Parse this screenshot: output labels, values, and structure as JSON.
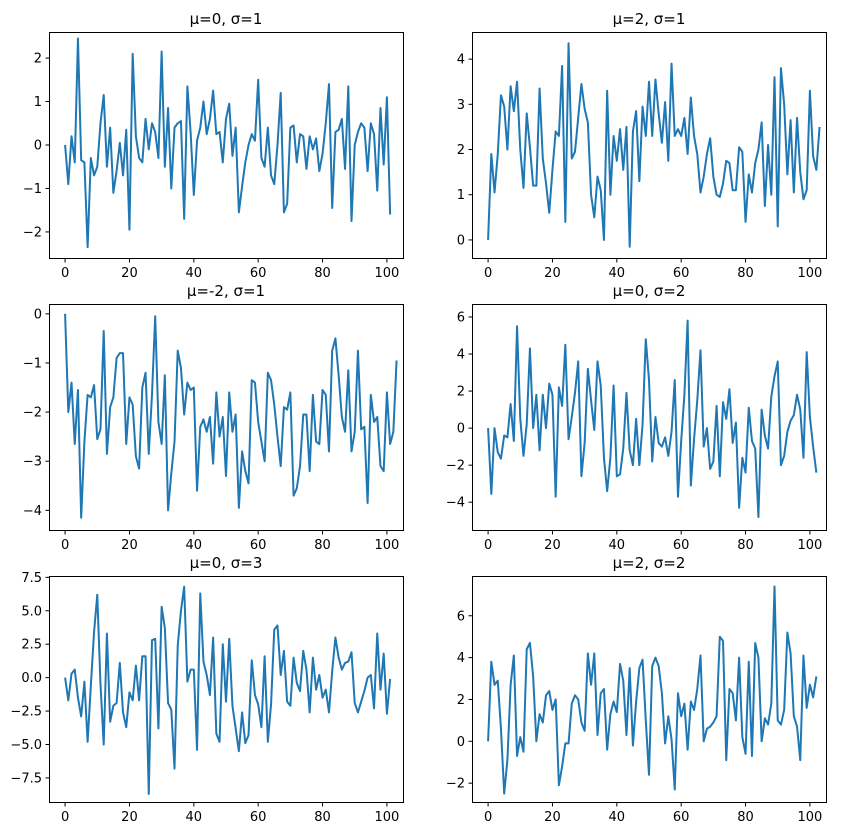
{
  "colors": {
    "line": "#1f77b4",
    "axis": "#000000",
    "background": "#ffffff"
  },
  "chart_data": [
    {
      "type": "line",
      "title": "μ=0, σ=1",
      "xlim": [
        -5,
        105
      ],
      "ylim": [
        -2.6,
        2.6
      ],
      "xticks": [
        0,
        20,
        40,
        60,
        80,
        100
      ],
      "xtick_labels": [
        "0",
        "20",
        "40",
        "60",
        "80",
        "100"
      ],
      "yticks": [
        -2,
        -1,
        0,
        1,
        2
      ],
      "ytick_labels": [
        "−2",
        "−1",
        "0",
        "1",
        "2"
      ],
      "values": [
        0,
        -0.9,
        0.2,
        -0.4,
        2.45,
        -0.35,
        -0.4,
        -2.35,
        -0.3,
        -0.7,
        -0.5,
        0.5,
        1.15,
        -0.5,
        0.4,
        -1.1,
        -0.6,
        0.05,
        -0.7,
        0.35,
        -1.95,
        2.1,
        0.2,
        -0.3,
        -0.4,
        0.6,
        -0.1,
        0.5,
        0.3,
        -0.3,
        2.15,
        -0.5,
        0.85,
        -1.0,
        0.4,
        0.5,
        0.55,
        -1.7,
        1.35,
        0.3,
        -1.15,
        0.1,
        0.4,
        1.0,
        0.25,
        0.6,
        1.25,
        0.25,
        0.3,
        -0.4,
        0.6,
        0.95,
        -0.25,
        0.4,
        -1.55,
        -0.95,
        -0.4,
        0.0,
        0.25,
        0.1,
        1.5,
        -0.3,
        -0.5,
        0.4,
        -0.7,
        -0.9,
        0.0,
        1.2,
        -1.55,
        -1.35,
        0.4,
        0.45,
        -0.4,
        0.25,
        0.2,
        -0.55,
        0.2,
        -0.1,
        0.15,
        -0.6,
        -0.2,
        0.5,
        1.4,
        -1.45,
        0.3,
        0.35,
        0.6,
        -0.55,
        1.35,
        -1.75,
        0.0,
        0.3,
        0.5,
        0.4,
        -0.6,
        0.5,
        0.25,
        -1.05,
        0.85,
        -0.45,
        1.1,
        -1.6
      ]
    },
    {
      "type": "line",
      "title": "μ=2, σ=1",
      "xlim": [
        -5,
        105
      ],
      "ylim": [
        -0.4,
        4.6
      ],
      "xticks": [
        0,
        20,
        40,
        60,
        80,
        100
      ],
      "xtick_labels": [
        "0",
        "20",
        "40",
        "60",
        "80",
        "100"
      ],
      "yticks": [
        0,
        1,
        2,
        3,
        4
      ],
      "ytick_labels": [
        "0",
        "1",
        "2",
        "3",
        "4"
      ],
      "values": [
        0,
        1.9,
        1.05,
        1.9,
        3.2,
        2.95,
        2.0,
        3.4,
        2.85,
        3.5,
        2.0,
        1.15,
        2.8,
        2.05,
        1.2,
        1.2,
        3.35,
        1.8,
        1.25,
        0.6,
        1.55,
        2.4,
        2.3,
        3.85,
        0.4,
        4.35,
        1.8,
        1.95,
        2.7,
        3.45,
        2.9,
        2.6,
        1.0,
        0.5,
        1.4,
        1.1,
        0.0,
        3.3,
        1.0,
        2.3,
        1.75,
        2.45,
        1.55,
        2.5,
        -0.15,
        2.4,
        2.85,
        1.3,
        2.95,
        2.3,
        3.5,
        2.3,
        3.55,
        2.8,
        2.15,
        3.05,
        1.75,
        3.9,
        2.3,
        2.45,
        2.3,
        2.7,
        1.9,
        3.15,
        2.3,
        1.9,
        1.05,
        1.4,
        1.9,
        2.25,
        1.4,
        1.0,
        0.95,
        1.25,
        1.75,
        1.7,
        1.1,
        1.1,
        2.05,
        1.95,
        0.4,
        1.45,
        1.05,
        1.7,
        2.0,
        2.6,
        0.75,
        2.1,
        1.0,
        3.6,
        0.3,
        3.8,
        3.0,
        1.45,
        2.65,
        1.05,
        2.7,
        1.5,
        0.9,
        1.1,
        3.3,
        1.85,
        1.55,
        2.5
      ]
    },
    {
      "type": "line",
      "title": "μ=-2, σ=1",
      "xlim": [
        -5,
        105
      ],
      "ylim": [
        -4.4,
        0.2
      ],
      "xticks": [
        0,
        20,
        40,
        60,
        80,
        100
      ],
      "xtick_labels": [
        "0",
        "20",
        "40",
        "60",
        "80",
        "100"
      ],
      "yticks": [
        -4,
        -3,
        -2,
        -1,
        0
      ],
      "ytick_labels": [
        "−4",
        "−3",
        "−2",
        "−1",
        "0"
      ],
      "values": [
        0,
        -2.0,
        -1.4,
        -2.65,
        -1.55,
        -4.15,
        -2.6,
        -1.65,
        -1.7,
        -1.45,
        -2.55,
        -2.35,
        -0.35,
        -2.85,
        -1.9,
        -1.7,
        -0.9,
        -0.8,
        -0.8,
        -2.65,
        -1.7,
        -1.85,
        -2.9,
        -3.15,
        -1.5,
        -1.2,
        -2.85,
        -1.65,
        -0.05,
        -2.2,
        -2.65,
        -1.25,
        -4.0,
        -3.25,
        -2.6,
        -0.75,
        -1.1,
        -2.05,
        -1.4,
        -1.55,
        -1.5,
        -3.6,
        -2.3,
        -2.15,
        -2.4,
        -2.1,
        -3.05,
        -1.6,
        -2.5,
        -2.1,
        -3.3,
        -1.6,
        -2.4,
        -2.05,
        -3.95,
        -2.8,
        -3.2,
        -3.45,
        -1.35,
        -1.4,
        -2.2,
        -2.6,
        -3.0,
        -1.2,
        -1.35,
        -1.85,
        -2.5,
        -3.1,
        -1.9,
        -1.95,
        -1.6,
        -3.7,
        -3.55,
        -3.1,
        -2.05,
        -2.05,
        -3.2,
        -1.65,
        -2.6,
        -2.65,
        -1.55,
        -1.65,
        -2.8,
        -0.75,
        -0.5,
        -1.25,
        -2.1,
        -2.4,
        -1.15,
        -2.8,
        -2.4,
        -0.75,
        -2.35,
        -2.3,
        -3.85,
        -1.65,
        -2.2,
        -2.1,
        -3.1,
        -3.2,
        -1.6,
        -2.65,
        -2.4,
        -0.95
      ]
    },
    {
      "type": "line",
      "title": "μ=0, σ=2",
      "xlim": [
        -5,
        105
      ],
      "ylim": [
        -5.5,
        6.7
      ],
      "xticks": [
        0,
        20,
        40,
        60,
        80,
        100
      ],
      "xtick_labels": [
        "0",
        "20",
        "40",
        "60",
        "80",
        "100"
      ],
      "yticks": [
        -4,
        -2,
        0,
        2,
        4,
        6
      ],
      "ytick_labels": [
        "−4",
        "−2",
        "0",
        "2",
        "4",
        "6"
      ],
      "values": [
        0,
        -3.55,
        0.0,
        -1.3,
        -1.65,
        -0.4,
        -0.5,
        1.3,
        -0.7,
        5.5,
        0.5,
        -1.5,
        0.2,
        4.3,
        0.0,
        1.8,
        -1.2,
        1.8,
        0.0,
        2.4,
        1.8,
        -3.7,
        2.2,
        1.2,
        4.5,
        -0.6,
        0.6,
        1.9,
        3.6,
        -2.6,
        -0.8,
        3.2,
        1.5,
        -0.1,
        3.6,
        2.3,
        -1.6,
        -3.4,
        -1.6,
        2.3,
        -2.6,
        -2.5,
        -1.1,
        1.9,
        -1.2,
        -2.0,
        0.5,
        -2.0,
        0.2,
        4.8,
        2.6,
        -1.8,
        0.6,
        -0.8,
        -1.0,
        -0.5,
        -1.5,
        -0.2,
        2.6,
        -3.7,
        -0.7,
        1.8,
        5.8,
        -3.1,
        -0.6,
        1.5,
        4.2,
        -1.0,
        0.0,
        -2.2,
        -1.8,
        1.2,
        -2.6,
        1.4,
        0.5,
        2.1,
        -0.8,
        0.3,
        -4.3,
        -1.6,
        -2.4,
        1.1,
        -0.7,
        -1.1,
        -4.8,
        1.0,
        -0.4,
        -1.1,
        1.7,
        2.8,
        3.6,
        -2.0,
        -1.5,
        -0.2,
        0.4,
        0.7,
        1.8,
        1.0,
        -1.6,
        4.1,
        0.6,
        -1.0,
        -2.4
      ]
    },
    {
      "type": "line",
      "title": "μ=0, σ=3",
      "xlim": [
        -5,
        105
      ],
      "ylim": [
        -9.3,
        7.6
      ],
      "xticks": [
        0,
        20,
        40,
        60,
        80,
        100
      ],
      "xtick_labels": [
        "0",
        "20",
        "40",
        "60",
        "80",
        "100"
      ],
      "yticks": [
        -7.5,
        -5.0,
        -2.5,
        0.0,
        2.5,
        5.0,
        7.5
      ],
      "ytick_labels": [
        "−7.5",
        "−5.0",
        "−2.5",
        "0.0",
        "2.5",
        "5.0",
        "7.5"
      ],
      "values": [
        0,
        -1.7,
        0.3,
        0.6,
        -1.5,
        -2.9,
        -0.3,
        -4.8,
        -0.6,
        3.4,
        6.2,
        -0.5,
        -5.0,
        3.3,
        -3.3,
        -2.1,
        -1.9,
        1.1,
        -2.6,
        -3.7,
        -1.1,
        -1.7,
        0.9,
        -1.7,
        1.6,
        1.6,
        -8.7,
        2.8,
        2.9,
        -3.8,
        5.3,
        3.7,
        -1.9,
        -2.4,
        -6.8,
        2.4,
        5.0,
        6.8,
        -0.3,
        0.6,
        0.6,
        -5.4,
        6.3,
        1.2,
        0.2,
        -1.3,
        3.0,
        -4.2,
        -4.8,
        2.5,
        -1.8,
        2.9,
        -2.1,
        -3.8,
        -5.5,
        -2.6,
        -4.9,
        -4.3,
        1.3,
        -1.3,
        -2.0,
        -3.7,
        1.6,
        -4.8,
        -2.0,
        3.6,
        3.9,
        0.2,
        2.0,
        -1.8,
        -2.1,
        1.5,
        -0.4,
        -1.0,
        2.0,
        0.6,
        -2.6,
        1.5,
        -0.9,
        0.2,
        -1.5,
        -0.9,
        -2.6,
        0.5,
        3.0,
        1.5,
        0.6,
        1.1,
        1.2,
        1.9,
        -1.9,
        -2.6,
        -1.8,
        -1.0,
        0.0,
        0.2,
        -2.3,
        3.3,
        -0.9,
        1.8,
        -2.7,
        -0.1
      ]
    },
    {
      "type": "line",
      "title": "μ=2, σ=2",
      "xlim": [
        -5,
        105
      ],
      "ylim": [
        -2.9,
        7.9
      ],
      "xticks": [
        0,
        20,
        40,
        60,
        80,
        100
      ],
      "xtick_labels": [
        "0",
        "20",
        "40",
        "60",
        "80",
        "100"
      ],
      "yticks": [
        -2,
        0,
        2,
        4,
        6
      ],
      "ytick_labels": [
        "−2",
        "0",
        "2",
        "4",
        "6"
      ],
      "values": [
        0,
        3.8,
        2.7,
        2.9,
        0.6,
        -2.5,
        -0.9,
        2.7,
        4.1,
        -0.7,
        0.2,
        -0.5,
        4.4,
        4.7,
        3.1,
        0.0,
        1.3,
        0.9,
        2.2,
        2.4,
        1.5,
        2.0,
        -2.1,
        -1.2,
        -0.1,
        -0.1,
        1.8,
        2.2,
        2.0,
        0.9,
        0.5,
        4.2,
        2.7,
        4.2,
        0.3,
        2.3,
        2.5,
        -0.4,
        1.3,
        1.9,
        1.4,
        3.7,
        2.9,
        0.3,
        3.5,
        -0.2,
        1.9,
        3.5,
        3.9,
        1.0,
        -1.6,
        3.6,
        4.0,
        3.6,
        2.3,
        -0.1,
        1.2,
        0.1,
        -2.3,
        2.3,
        1.2,
        1.8,
        -0.4,
        1.9,
        1.5,
        2.5,
        4.1,
        0.0,
        0.6,
        0.7,
        0.9,
        1.2,
        5.0,
        4.8,
        -0.9,
        2.5,
        2.3,
        1.0,
        4.0,
        0.2,
        -0.6,
        3.8,
        -0.7,
        4.7,
        4.0,
        0.0,
        1.1,
        0.8,
        1.8,
        7.4,
        1.0,
        0.8,
        1.5,
        5.2,
        4.2,
        1.2,
        0.7,
        -0.9,
        4.1,
        1.6,
        2.7,
        2.1,
        3.1
      ]
    }
  ]
}
